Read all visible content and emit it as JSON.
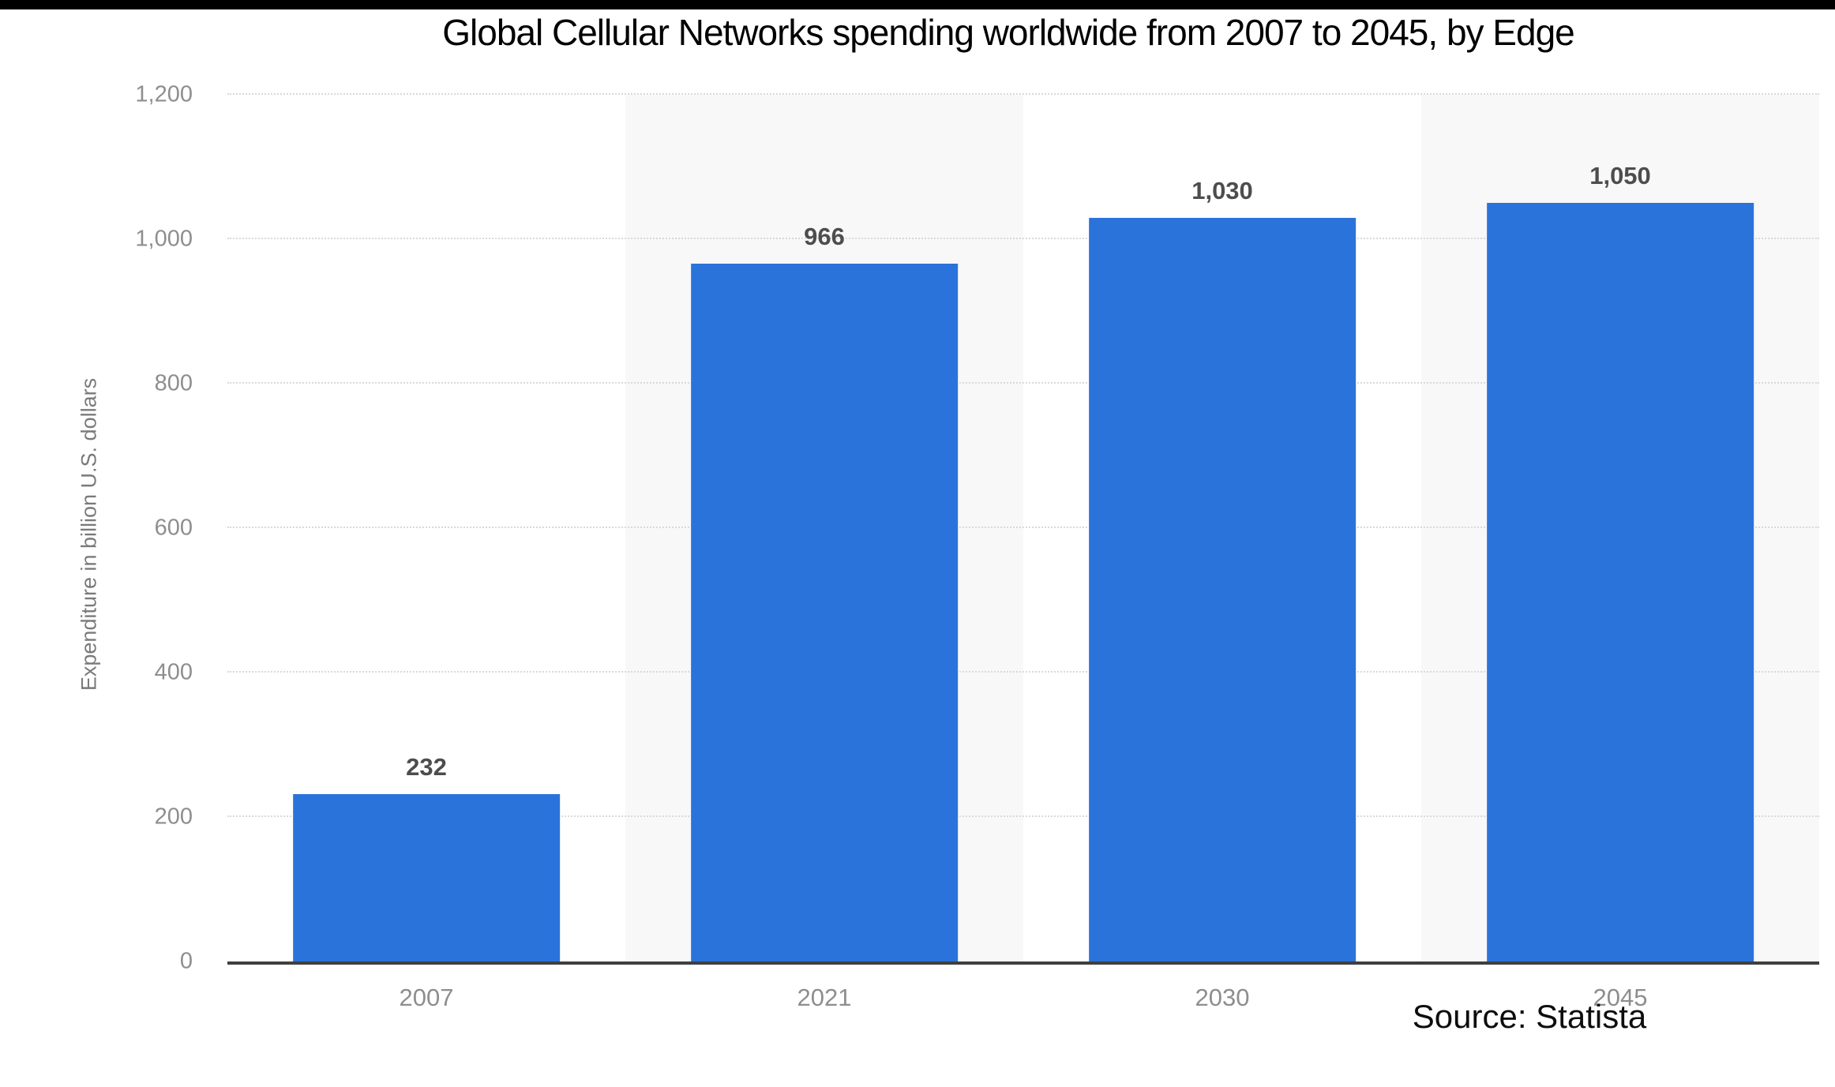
{
  "page": {
    "top_bar_color": "#000000",
    "background_color": "#ffffff"
  },
  "chart_data": {
    "type": "bar",
    "title": "Global Cellular Networks spending worldwide from 2007 to 2045, by Edge",
    "categories": [
      "2007",
      "2021",
      "2030",
      "2045"
    ],
    "values": [
      232,
      966,
      1030,
      1050
    ],
    "value_labels": [
      "232",
      "966",
      "1,030",
      "1,050"
    ],
    "xlabel": "",
    "ylabel": "Expenditure in billion U.S. dollars",
    "ylim": [
      0,
      1200
    ],
    "yticks": [
      0,
      200,
      400,
      600,
      800,
      1000,
      1200
    ],
    "ytick_labels": [
      "0",
      "200",
      "400",
      "600",
      "800",
      "1,000",
      "1,200"
    ],
    "grid": "horizontal-dotted",
    "legend": "none",
    "bar_color": "#2a73da",
    "column_stripe_color": "#f8f8f8",
    "gridline_color": "#d9d9d9",
    "axis_line_color": "#3f3f3f",
    "tick_label_color": "#8e8e8e",
    "value_label_color": "#4d4d4d",
    "source_text": "Source: Statista"
  }
}
